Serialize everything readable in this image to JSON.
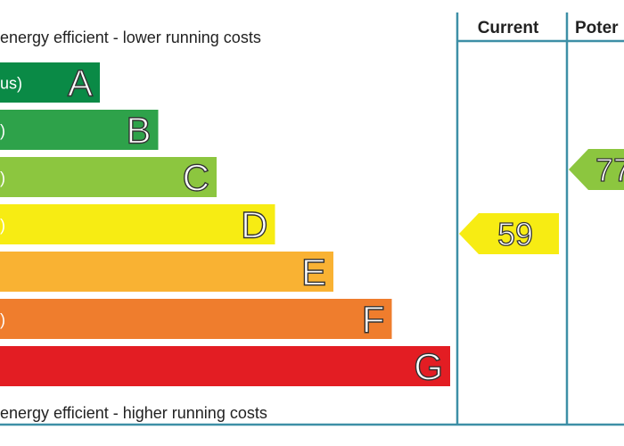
{
  "chart_data": {
    "type": "bar",
    "title": "",
    "top_caption": "energy efficient - lower running costs",
    "bottom_caption": "energy efficient - higher running costs",
    "bands": [
      {
        "letter": "A",
        "range": "us)",
        "color": "#0a8a46"
      },
      {
        "letter": "B",
        "range": ")",
        "color": "#2ea24a"
      },
      {
        "letter": "C",
        "range": ")",
        "color": "#8cc63f"
      },
      {
        "letter": "D",
        "range": ")",
        "color": "#f7ec13"
      },
      {
        "letter": "E",
        "range": "",
        "color": "#f9b233"
      },
      {
        "letter": "F",
        "range": ")",
        "color": "#ef7d2d"
      },
      {
        "letter": "G",
        "range": "",
        "color": "#e31d23"
      }
    ],
    "columns": {
      "current_label": "Current",
      "potential_label": "Poter"
    },
    "current": {
      "value": "59",
      "band": "D",
      "color": "#f7ec13"
    },
    "potential": {
      "value": "77",
      "band": "C",
      "color": "#8cc63f"
    },
    "line_color": "#3d8fa6"
  }
}
